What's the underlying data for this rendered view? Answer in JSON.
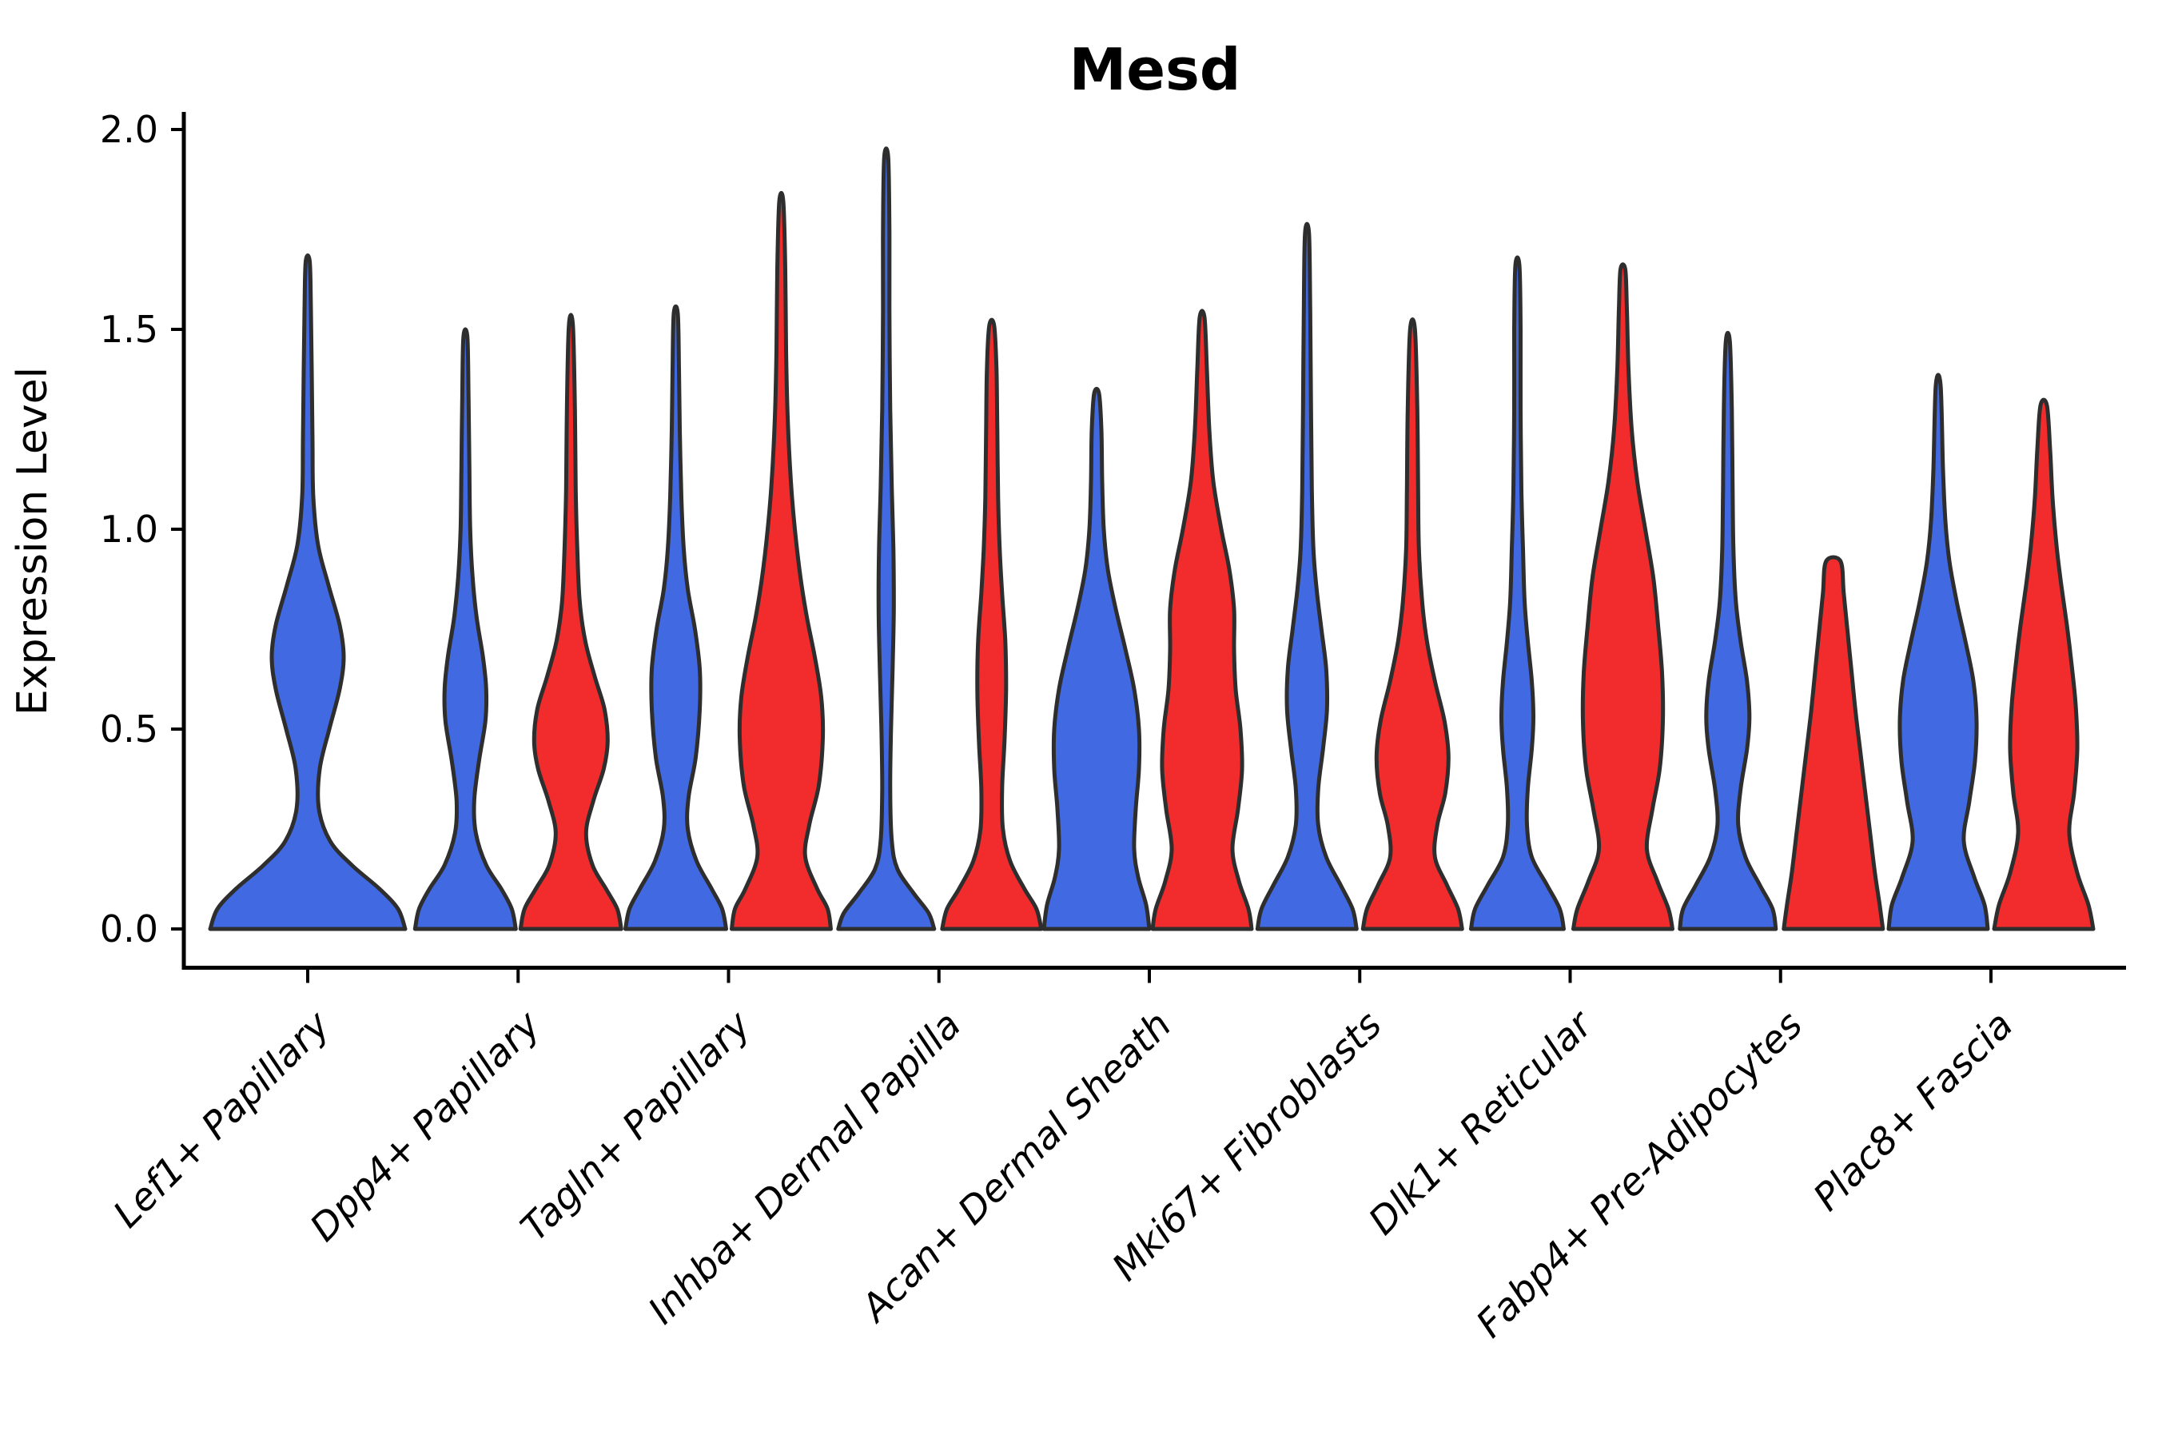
{
  "chart_data": {
    "type": "violin",
    "title": "Mesd",
    "ylabel": "Expression Level",
    "xlabel": "",
    "ylim": [
      0.0,
      2.0
    ],
    "grid": false,
    "legend": "none",
    "yticks": [
      {
        "value": 0.0,
        "label": "0.0"
      },
      {
        "value": 0.5,
        "label": "0.5"
      },
      {
        "value": 1.0,
        "label": "1.0"
      },
      {
        "value": 1.5,
        "label": "1.5"
      },
      {
        "value": 2.0,
        "label": "2.0"
      }
    ],
    "categories": [
      "Lef1+ Papillary",
      "Dpp4+ Papillary",
      "Tagln+ Papillary",
      "Inhba+ Dermal Papilla",
      "Acan+ Dermal Sheath",
      "Mki67+ Fibroblasts",
      "Dlk1+ Reticular",
      "Fabp4+ Pre-Adipocytes",
      "Plac8+ Fascia"
    ],
    "groups": {
      "blue": {
        "color": "#4169E1"
      },
      "red": {
        "color": "#F22C2C"
      }
    },
    "violins": [
      {
        "category": 0,
        "group": "blue",
        "span": "full",
        "peak_value": 1.67,
        "profile": [
          [
            0,
            122
          ],
          [
            0.05,
            113
          ],
          [
            0.1,
            90
          ],
          [
            0.16,
            55
          ],
          [
            0.22,
            28
          ],
          [
            0.3,
            14
          ],
          [
            0.4,
            15
          ],
          [
            0.5,
            27
          ],
          [
            0.6,
            40
          ],
          [
            0.68,
            45
          ],
          [
            0.76,
            40
          ],
          [
            0.86,
            26
          ],
          [
            0.96,
            13
          ],
          [
            1.08,
            7
          ],
          [
            1.22,
            6
          ],
          [
            1.4,
            5
          ],
          [
            1.55,
            4
          ],
          [
            1.67,
            2.5
          ]
        ]
      },
      {
        "category": 1,
        "group": "blue",
        "span": "left",
        "peak_value": 1.48,
        "profile": [
          [
            0,
            63
          ],
          [
            0.05,
            58
          ],
          [
            0.1,
            45
          ],
          [
            0.16,
            26
          ],
          [
            0.24,
            13
          ],
          [
            0.32,
            11
          ],
          [
            0.42,
            17
          ],
          [
            0.52,
            25
          ],
          [
            0.6,
            26
          ],
          [
            0.68,
            22
          ],
          [
            0.78,
            14
          ],
          [
            0.88,
            9
          ],
          [
            1,
            6
          ],
          [
            1.15,
            5
          ],
          [
            1.32,
            4
          ],
          [
            1.48,
            2.5
          ]
        ]
      },
      {
        "category": 1,
        "group": "red",
        "span": "right",
        "peak_value": 1.51,
        "profile": [
          [
            0,
            63
          ],
          [
            0.05,
            58
          ],
          [
            0.1,
            44
          ],
          [
            0.16,
            27
          ],
          [
            0.24,
            19
          ],
          [
            0.32,
            28
          ],
          [
            0.4,
            41
          ],
          [
            0.47,
            46
          ],
          [
            0.55,
            42
          ],
          [
            0.63,
            30
          ],
          [
            0.72,
            18
          ],
          [
            0.82,
            11
          ],
          [
            0.95,
            8
          ],
          [
            1.1,
            6
          ],
          [
            1.3,
            5
          ],
          [
            1.51,
            2.5
          ]
        ]
      },
      {
        "category": 2,
        "group": "blue",
        "span": "left",
        "peak_value": 1.54,
        "profile": [
          [
            0,
            63
          ],
          [
            0.05,
            58
          ],
          [
            0.1,
            45
          ],
          [
            0.17,
            26
          ],
          [
            0.25,
            15
          ],
          [
            0.33,
            16
          ],
          [
            0.43,
            25
          ],
          [
            0.55,
            30
          ],
          [
            0.65,
            30
          ],
          [
            0.75,
            24
          ],
          [
            0.85,
            15
          ],
          [
            0.95,
            10
          ],
          [
            1.08,
            7
          ],
          [
            1.25,
            5
          ],
          [
            1.4,
            4
          ],
          [
            1.54,
            2.5
          ]
        ]
      },
      {
        "category": 2,
        "group": "red",
        "span": "right",
        "peak_value": 1.82,
        "profile": [
          [
            0,
            62
          ],
          [
            0.05,
            58
          ],
          [
            0.1,
            45
          ],
          [
            0.18,
            30
          ],
          [
            0.26,
            35
          ],
          [
            0.36,
            47
          ],
          [
            0.48,
            52
          ],
          [
            0.58,
            50
          ],
          [
            0.68,
            42
          ],
          [
            0.78,
            32
          ],
          [
            0.88,
            24
          ],
          [
            1,
            17
          ],
          [
            1.12,
            12
          ],
          [
            1.28,
            8
          ],
          [
            1.45,
            6
          ],
          [
            1.65,
            5
          ],
          [
            1.82,
            2.5
          ]
        ]
      },
      {
        "category": 3,
        "group": "blue",
        "span": "left",
        "peak_value": 1.93,
        "profile": [
          [
            0,
            60
          ],
          [
            0.04,
            53
          ],
          [
            0.09,
            34
          ],
          [
            0.15,
            14
          ],
          [
            0.22,
            7
          ],
          [
            0.35,
            5
          ],
          [
            0.5,
            6
          ],
          [
            0.65,
            8
          ],
          [
            0.8,
            9.5
          ],
          [
            0.95,
            9
          ],
          [
            1.1,
            7
          ],
          [
            1.3,
            5
          ],
          [
            1.55,
            4
          ],
          [
            1.75,
            4
          ],
          [
            1.93,
            2.5
          ]
        ]
      },
      {
        "category": 3,
        "group": "red",
        "span": "right",
        "peak_value": 1.51,
        "profile": [
          [
            0,
            62
          ],
          [
            0.05,
            56
          ],
          [
            0.1,
            41
          ],
          [
            0.17,
            23
          ],
          [
            0.25,
            14
          ],
          [
            0.35,
            13
          ],
          [
            0.47,
            16
          ],
          [
            0.6,
            18
          ],
          [
            0.72,
            17
          ],
          [
            0.84,
            13
          ],
          [
            0.95,
            10
          ],
          [
            1.08,
            8
          ],
          [
            1.25,
            7
          ],
          [
            1.4,
            6
          ],
          [
            1.51,
            3
          ]
        ]
      },
      {
        "category": 4,
        "group": "blue",
        "span": "left",
        "peak_value": 1.34,
        "profile": [
          [
            0,
            66
          ],
          [
            0.06,
            62
          ],
          [
            0.13,
            52
          ],
          [
            0.2,
            47
          ],
          [
            0.3,
            49
          ],
          [
            0.4,
            53
          ],
          [
            0.5,
            53
          ],
          [
            0.6,
            47
          ],
          [
            0.7,
            36
          ],
          [
            0.8,
            24
          ],
          [
            0.9,
            14
          ],
          [
            1,
            9
          ],
          [
            1.12,
            7
          ],
          [
            1.25,
            6
          ],
          [
            1.34,
            3
          ]
        ]
      },
      {
        "category": 4,
        "group": "red",
        "span": "right",
        "peak_value": 1.53,
        "profile": [
          [
            0,
            62
          ],
          [
            0.05,
            58
          ],
          [
            0.12,
            46
          ],
          [
            0.2,
            38
          ],
          [
            0.3,
            45
          ],
          [
            0.4,
            50
          ],
          [
            0.5,
            48
          ],
          [
            0.6,
            42
          ],
          [
            0.7,
            40
          ],
          [
            0.8,
            40
          ],
          [
            0.9,
            34
          ],
          [
            1,
            24
          ],
          [
            1.12,
            14
          ],
          [
            1.25,
            9
          ],
          [
            1.4,
            6
          ],
          [
            1.53,
            3
          ]
        ]
      },
      {
        "category": 5,
        "group": "blue",
        "span": "left",
        "peak_value": 1.74,
        "profile": [
          [
            0,
            62
          ],
          [
            0.05,
            57
          ],
          [
            0.11,
            42
          ],
          [
            0.18,
            24
          ],
          [
            0.26,
            14
          ],
          [
            0.35,
            14
          ],
          [
            0.45,
            20
          ],
          [
            0.55,
            25
          ],
          [
            0.65,
            24
          ],
          [
            0.75,
            18
          ],
          [
            0.85,
            12
          ],
          [
            0.95,
            8
          ],
          [
            1.1,
            6
          ],
          [
            1.3,
            5
          ],
          [
            1.55,
            4
          ],
          [
            1.74,
            2.5
          ]
        ]
      },
      {
        "category": 5,
        "group": "red",
        "span": "right",
        "peak_value": 1.5,
        "profile": [
          [
            0,
            62
          ],
          [
            0.05,
            57
          ],
          [
            0.11,
            43
          ],
          [
            0.18,
            28
          ],
          [
            0.26,
            31
          ],
          [
            0.34,
            41
          ],
          [
            0.43,
            45
          ],
          [
            0.52,
            40
          ],
          [
            0.62,
            28
          ],
          [
            0.72,
            18
          ],
          [
            0.82,
            12
          ],
          [
            0.95,
            8
          ],
          [
            1.1,
            7
          ],
          [
            1.3,
            6
          ],
          [
            1.5,
            3
          ]
        ]
      },
      {
        "category": 6,
        "group": "blue",
        "span": "left",
        "peak_value": 1.66,
        "profile": [
          [
            0,
            58
          ],
          [
            0.05,
            53
          ],
          [
            0.11,
            37
          ],
          [
            0.18,
            18
          ],
          [
            0.26,
            12
          ],
          [
            0.35,
            13
          ],
          [
            0.45,
            18
          ],
          [
            0.53,
            20
          ],
          [
            0.62,
            18
          ],
          [
            0.72,
            13
          ],
          [
            0.82,
            9
          ],
          [
            0.95,
            7
          ],
          [
            1.1,
            5
          ],
          [
            1.3,
            4
          ],
          [
            1.5,
            4
          ],
          [
            1.66,
            2.5
          ]
        ]
      },
      {
        "category": 6,
        "group": "red",
        "span": "right",
        "peak_value": 1.65,
        "profile": [
          [
            0,
            62
          ],
          [
            0.05,
            57
          ],
          [
            0.12,
            43
          ],
          [
            0.2,
            30
          ],
          [
            0.3,
            37
          ],
          [
            0.4,
            46
          ],
          [
            0.52,
            50
          ],
          [
            0.64,
            49
          ],
          [
            0.76,
            44
          ],
          [
            0.88,
            38
          ],
          [
            1,
            28
          ],
          [
            1.12,
            18
          ],
          [
            1.25,
            11
          ],
          [
            1.4,
            7
          ],
          [
            1.55,
            5
          ],
          [
            1.65,
            3
          ]
        ]
      },
      {
        "category": 7,
        "group": "blue",
        "span": "left",
        "peak_value": 1.47,
        "profile": [
          [
            0,
            60
          ],
          [
            0.05,
            56
          ],
          [
            0.11,
            40
          ],
          [
            0.18,
            22
          ],
          [
            0.26,
            13
          ],
          [
            0.35,
            16
          ],
          [
            0.45,
            24
          ],
          [
            0.53,
            27
          ],
          [
            0.62,
            24
          ],
          [
            0.72,
            16
          ],
          [
            0.82,
            10
          ],
          [
            0.95,
            7
          ],
          [
            1.1,
            6
          ],
          [
            1.3,
            5
          ],
          [
            1.47,
            2.5
          ]
        ]
      },
      {
        "category": 7,
        "group": "red",
        "span": "right",
        "peak_value": 0.92,
        "flat_top": true,
        "profile": [
          [
            0,
            62
          ],
          [
            0.06,
            58
          ],
          [
            0.14,
            52
          ],
          [
            0.24,
            46
          ],
          [
            0.34,
            40
          ],
          [
            0.44,
            34
          ],
          [
            0.54,
            28
          ],
          [
            0.64,
            23
          ],
          [
            0.74,
            18
          ],
          [
            0.84,
            13
          ],
          [
            0.92,
            9
          ]
        ]
      },
      {
        "category": 8,
        "group": "blue",
        "span": "left",
        "peak_value": 1.36,
        "profile": [
          [
            0,
            62
          ],
          [
            0.06,
            58
          ],
          [
            0.13,
            45
          ],
          [
            0.22,
            32
          ],
          [
            0.32,
            39
          ],
          [
            0.42,
            46
          ],
          [
            0.52,
            48
          ],
          [
            0.62,
            44
          ],
          [
            0.72,
            34
          ],
          [
            0.82,
            23
          ],
          [
            0.92,
            14
          ],
          [
            1.02,
            9
          ],
          [
            1.15,
            6
          ],
          [
            1.36,
            3
          ]
        ]
      },
      {
        "category": 8,
        "group": "red",
        "span": "right",
        "peak_value": 1.31,
        "profile": [
          [
            0,
            62
          ],
          [
            0.06,
            56
          ],
          [
            0.14,
            42
          ],
          [
            0.24,
            32
          ],
          [
            0.34,
            38
          ],
          [
            0.45,
            42
          ],
          [
            0.56,
            40
          ],
          [
            0.66,
            35
          ],
          [
            0.76,
            29
          ],
          [
            0.86,
            22
          ],
          [
            0.96,
            16
          ],
          [
            1.08,
            11
          ],
          [
            1.2,
            8
          ],
          [
            1.31,
            4
          ]
        ]
      }
    ],
    "style": {
      "violin_outline_color": "#2E2E2E",
      "axis_color": "#000000",
      "text_color": "#000000",
      "background_color": "#FFFFFF"
    }
  }
}
